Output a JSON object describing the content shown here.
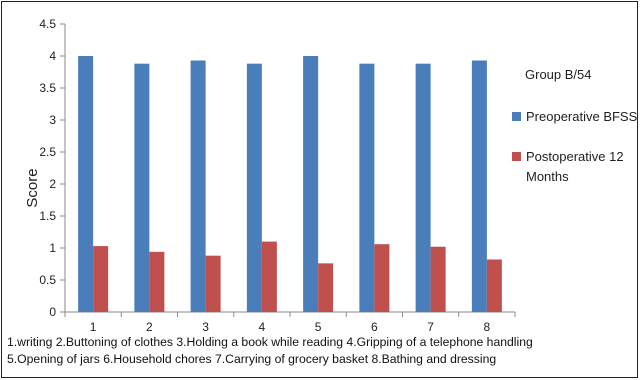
{
  "chart_data": {
    "type": "bar",
    "categories": [
      "1",
      "2",
      "3",
      "4",
      "5",
      "6",
      "7",
      "8"
    ],
    "series": [
      {
        "name": "Preoperative BFSS",
        "values": [
          4.0,
          3.88,
          3.93,
          3.88,
          4.0,
          3.88,
          3.88,
          3.93
        ],
        "color": "#4a7ebb"
      },
      {
        "name": "Postoperative 12 Months",
        "values": [
          1.03,
          0.94,
          0.88,
          1.1,
          0.76,
          1.06,
          1.02,
          0.82
        ],
        "color": "#c0504d"
      }
    ],
    "title": "",
    "xlabel": "",
    "ylabel": "Score",
    "ylim": [
      0,
      4.5
    ],
    "yticks": [
      "0",
      "0.5",
      "1",
      "1.5",
      "2",
      "2.5",
      "3",
      "3.5",
      "4",
      "4.5"
    ],
    "grid": false,
    "legend": {
      "title": "Group B/54",
      "placement": "right",
      "entries": [
        {
          "lines": [
            "Preoperative BFSS"
          ]
        },
        {
          "lines": [
            "Postoperative 12",
            "Months"
          ]
        }
      ]
    }
  },
  "footnote": {
    "line1": "1.writing 2.Buttoning of clothes 3.Holding a book while reading 4.Gripping of a telephone handling",
    "line2": "5.Opening of jars 6.Household chores 7.Carrying of grocery basket 8.Bathing and dressing"
  }
}
